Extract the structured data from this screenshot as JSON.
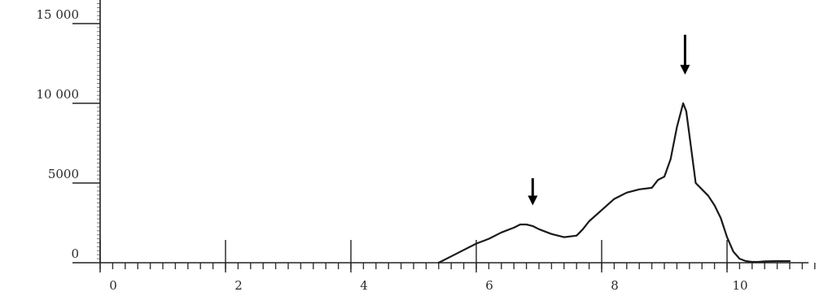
{
  "chart_data": {
    "type": "line",
    "title": "",
    "xlabel": "",
    "ylabel": "",
    "xlim": [
      0,
      11.3
    ],
    "ylim": [
      0,
      16500
    ],
    "grid": false,
    "x_ticks": [
      {
        "value": 0,
        "label": "0"
      },
      {
        "value": 2,
        "label": "2"
      },
      {
        "value": 4,
        "label": "4"
      },
      {
        "value": 6,
        "label": "6"
      },
      {
        "value": 8,
        "label": "8"
      },
      {
        "value": 10,
        "label": "10"
      }
    ],
    "y_ticks": [
      {
        "value": 0,
        "label": "0"
      },
      {
        "value": 5000,
        "label": "5000"
      },
      {
        "value": 10000,
        "label": "10 000"
      },
      {
        "value": 15000,
        "label": "15 000"
      }
    ],
    "series": [
      {
        "x": [
          5.4,
          5.6,
          5.8,
          6.0,
          6.2,
          6.4,
          6.6,
          6.7,
          6.8,
          6.9,
          7.0,
          7.2,
          7.4,
          7.6,
          7.7,
          7.8,
          8.0,
          8.2,
          8.4,
          8.6,
          8.8,
          8.9,
          9.0,
          9.1,
          9.2,
          9.3,
          9.35,
          9.4,
          9.5,
          9.6,
          9.7,
          9.8,
          9.9,
          10.0,
          10.1,
          10.2,
          10.3,
          10.4,
          10.5,
          10.6,
          10.8,
          11.0
        ],
        "y": [
          0,
          400,
          800,
          1200,
          1500,
          1900,
          2200,
          2400,
          2400,
          2300,
          2100,
          1800,
          1600,
          1700,
          2100,
          2600,
          3300,
          4000,
          4400,
          4600,
          4700,
          5200,
          5400,
          6500,
          8500,
          10000,
          9500,
          8000,
          5000,
          4600,
          4200,
          3600,
          2800,
          1600,
          700,
          250,
          100,
          50,
          50,
          80,
          100,
          100
        ]
      }
    ],
    "annotations": [
      {
        "type": "arrow",
        "x": 6.9,
        "y_from": 5300,
        "y_to": 3600
      },
      {
        "type": "arrow",
        "x": 9.33,
        "y_from": 14300,
        "y_to": 11800
      }
    ]
  }
}
